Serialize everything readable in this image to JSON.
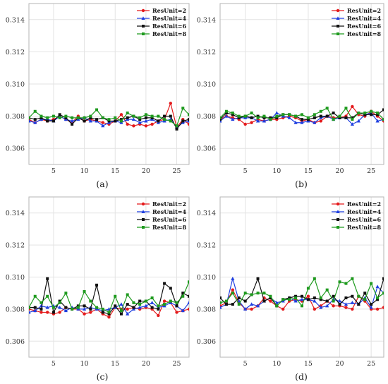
{
  "colors": {
    "ResUnit=2": "#e41a1c",
    "ResUnit=4": "#1f3fe0",
    "ResUnit=6": "#111111",
    "ResUnit=8": "#1e9a1e"
  },
  "chart_data": [
    {
      "type": "line",
      "caption": "(a)",
      "x": [
        1,
        2,
        3,
        4,
        5,
        6,
        7,
        8,
        9,
        10,
        11,
        12,
        13,
        14,
        15,
        16,
        17,
        18,
        19,
        20,
        21,
        22,
        23,
        24,
        25,
        26,
        27
      ],
      "xlim": [
        1,
        27
      ],
      "ylim": [
        0.305,
        0.315
      ],
      "xticks": [
        5,
        10,
        15,
        20,
        25
      ],
      "yticks": [
        0.306,
        0.308,
        0.31,
        0.312,
        0.314
      ],
      "yticklabels": [
        "0.306",
        "0.308",
        "0.310",
        "0.312",
        "0.314"
      ],
      "grid": true,
      "legend": "top-right",
      "series": [
        {
          "name": "ResUnit=2",
          "values": [
            0.3078,
            0.3076,
            0.3078,
            0.3077,
            0.3078,
            0.308,
            0.3078,
            0.3076,
            0.308,
            0.3077,
            0.3078,
            0.3077,
            0.3076,
            0.3075,
            0.3077,
            0.3081,
            0.3075,
            0.3074,
            0.3075,
            0.3074,
            0.3075,
            0.3077,
            0.3078,
            0.3088,
            0.3073,
            0.3078,
            0.3075
          ]
        },
        {
          "name": "ResUnit=4",
          "values": [
            0.3077,
            0.3076,
            0.3078,
            0.3078,
            0.3077,
            0.308,
            0.3078,
            0.3077,
            0.3078,
            0.3079,
            0.3077,
            0.3077,
            0.3074,
            0.3076,
            0.3077,
            0.3076,
            0.3078,
            0.3078,
            0.3076,
            0.3077,
            0.3078,
            0.3076,
            0.3077,
            0.3078,
            0.3073,
            0.3076,
            0.3077
          ]
        },
        {
          "name": "ResUnit=6",
          "values": [
            0.3079,
            0.3078,
            0.3079,
            0.3077,
            0.3077,
            0.3081,
            0.3079,
            0.3075,
            0.3079,
            0.3077,
            0.3079,
            0.3078,
            0.3079,
            0.3077,
            0.3077,
            0.3078,
            0.3079,
            0.308,
            0.3078,
            0.3079,
            0.3079,
            0.3077,
            0.308,
            0.308,
            0.3072,
            0.3077,
            0.3078
          ]
        },
        {
          "name": "ResUnit=8",
          "values": [
            0.3079,
            0.3083,
            0.308,
            0.3079,
            0.308,
            0.3079,
            0.308,
            0.3079,
            0.3079,
            0.3079,
            0.308,
            0.3084,
            0.3079,
            0.3078,
            0.3079,
            0.3077,
            0.3082,
            0.308,
            0.3079,
            0.3081,
            0.308,
            0.308,
            0.3078,
            0.3077,
            0.3074,
            0.3085,
            0.3081
          ]
        }
      ]
    },
    {
      "type": "line",
      "caption": "(b)",
      "x": [
        1,
        2,
        3,
        4,
        5,
        6,
        7,
        8,
        9,
        10,
        11,
        12,
        13,
        14,
        15,
        16,
        17,
        18,
        19,
        20,
        21,
        22,
        23,
        24,
        25,
        26,
        27
      ],
      "xlim": [
        1,
        27
      ],
      "ylim": [
        0.305,
        0.315
      ],
      "xticks": [
        5,
        10,
        15,
        20,
        25
      ],
      "yticks": [
        0.306,
        0.308,
        0.31,
        0.312,
        0.314
      ],
      "yticklabels": [
        "0.306",
        "0.308",
        "0.310",
        "0.312",
        "0.314"
      ],
      "grid": true,
      "legend": "top-right",
      "series": [
        {
          "name": "ResUnit=2",
          "values": [
            0.3078,
            0.308,
            0.3079,
            0.3078,
            0.3075,
            0.3076,
            0.3078,
            0.3077,
            0.3078,
            0.3078,
            0.3079,
            0.308,
            0.3079,
            0.3077,
            0.3078,
            0.3076,
            0.3077,
            0.308,
            0.3079,
            0.3079,
            0.308,
            0.3086,
            0.3081,
            0.308,
            0.3083,
            0.308,
            0.3077
          ]
        },
        {
          "name": "ResUnit=4",
          "values": [
            0.3077,
            0.308,
            0.3078,
            0.3079,
            0.3079,
            0.3079,
            0.3077,
            0.3077,
            0.3078,
            0.3082,
            0.308,
            0.3079,
            0.3076,
            0.3076,
            0.3077,
            0.3076,
            0.3079,
            0.308,
            0.3078,
            0.3079,
            0.3079,
            0.3075,
            0.3077,
            0.3081,
            0.3082,
            0.3077,
            0.3078
          ]
        },
        {
          "name": "ResUnit=6",
          "values": [
            0.3078,
            0.3082,
            0.3081,
            0.3079,
            0.308,
            0.3079,
            0.308,
            0.3079,
            0.3079,
            0.3079,
            0.3081,
            0.3081,
            0.308,
            0.3078,
            0.3078,
            0.3079,
            0.308,
            0.308,
            0.3082,
            0.3079,
            0.3079,
            0.3079,
            0.3082,
            0.3081,
            0.3081,
            0.3081,
            0.3084
          ]
        },
        {
          "name": "ResUnit=8",
          "values": [
            0.3079,
            0.3083,
            0.3082,
            0.308,
            0.308,
            0.3082,
            0.3079,
            0.308,
            0.3078,
            0.308,
            0.3081,
            0.3081,
            0.308,
            0.3081,
            0.3079,
            0.3081,
            0.3083,
            0.3085,
            0.3078,
            0.308,
            0.3085,
            0.3078,
            0.3082,
            0.3082,
            0.3083,
            0.3082,
            0.3078
          ]
        }
      ]
    },
    {
      "type": "line",
      "caption": "(c)",
      "x": [
        1,
        2,
        3,
        4,
        5,
        6,
        7,
        8,
        9,
        10,
        11,
        12,
        13,
        14,
        15,
        16,
        17,
        18,
        19,
        20,
        21,
        22,
        23,
        24,
        25,
        26,
        27
      ],
      "xlim": [
        1,
        27
      ],
      "ylim": [
        0.305,
        0.315
      ],
      "xticks": [
        5,
        10,
        15,
        20,
        25
      ],
      "yticks": [
        0.306,
        0.308,
        0.31,
        0.312,
        0.314
      ],
      "yticklabels": [
        "0.306",
        "0.308",
        "0.310",
        "0.312",
        "0.314"
      ],
      "grid": true,
      "legend": "top-right",
      "series": [
        {
          "name": "ResUnit=2",
          "values": [
            0.308,
            0.3079,
            0.3078,
            0.3078,
            0.3077,
            0.3078,
            0.3081,
            0.308,
            0.308,
            0.3077,
            0.3078,
            0.308,
            0.3077,
            0.3075,
            0.3081,
            0.308,
            0.308,
            0.3081,
            0.308,
            0.3081,
            0.308,
            0.3076,
            0.3085,
            0.3084,
            0.3078,
            0.3079,
            0.308
          ]
        },
        {
          "name": "ResUnit=4",
          "values": [
            0.3078,
            0.3079,
            0.3082,
            0.3081,
            0.3082,
            0.3081,
            0.3079,
            0.3081,
            0.308,
            0.308,
            0.3081,
            0.308,
            0.3079,
            0.308,
            0.3081,
            0.3083,
            0.3077,
            0.308,
            0.3081,
            0.3082,
            0.3084,
            0.3081,
            0.3082,
            0.3084,
            0.3082,
            0.3079,
            0.3084
          ]
        },
        {
          "name": "ResUnit=6",
          "values": [
            0.3081,
            0.3081,
            0.308,
            0.3099,
            0.3078,
            0.3085,
            0.3081,
            0.308,
            0.3082,
            0.3082,
            0.308,
            0.3095,
            0.3078,
            0.3077,
            0.3082,
            0.3077,
            0.3083,
            0.3081,
            0.3085,
            0.3085,
            0.3081,
            0.308,
            0.3096,
            0.3093,
            0.3082,
            0.309,
            0.3088
          ]
        },
        {
          "name": "ResUnit=8",
          "values": [
            0.3081,
            0.3088,
            0.3084,
            0.3088,
            0.3081,
            0.3084,
            0.309,
            0.308,
            0.3081,
            0.3091,
            0.3085,
            0.3081,
            0.308,
            0.3078,
            0.3088,
            0.3079,
            0.3089,
            0.3084,
            0.3083,
            0.3085,
            0.3087,
            0.3082,
            0.3083,
            0.3085,
            0.3084,
            0.3088,
            0.3097
          ]
        }
      ]
    },
    {
      "type": "line",
      "caption": "(d)",
      "x": [
        1,
        2,
        3,
        4,
        5,
        6,
        7,
        8,
        9,
        10,
        11,
        12,
        13,
        14,
        15,
        16,
        17,
        18,
        19,
        20,
        21,
        22,
        23,
        24,
        25,
        26,
        27
      ],
      "xlim": [
        1,
        27
      ],
      "ylim": [
        0.305,
        0.315
      ],
      "xticks": [
        5,
        10,
        15,
        20,
        25
      ],
      "yticks": [
        0.306,
        0.308,
        0.31,
        0.312,
        0.314
      ],
      "yticklabels": [
        "0.306",
        "0.308",
        "0.310",
        "0.312",
        "0.314"
      ],
      "grid": true,
      "legend": "top-right",
      "series": [
        {
          "name": "ResUnit=2",
          "values": [
            0.3082,
            0.3084,
            0.3092,
            0.3084,
            0.308,
            0.308,
            0.3082,
            0.3087,
            0.3085,
            0.3082,
            0.308,
            0.3085,
            0.3086,
            0.3085,
            0.3088,
            0.308,
            0.3082,
            0.3085,
            0.3082,
            0.3082,
            0.3081,
            0.308,
            0.3088,
            0.3085,
            0.308,
            0.308,
            0.3081
          ]
        },
        {
          "name": "ResUnit=4",
          "values": [
            0.3081,
            0.3083,
            0.3099,
            0.3085,
            0.308,
            0.3083,
            0.3082,
            0.3085,
            0.3087,
            0.3084,
            0.3085,
            0.3087,
            0.3085,
            0.3086,
            0.3086,
            0.3085,
            0.3081,
            0.3082,
            0.3086,
            0.3085,
            0.3083,
            0.3084,
            0.3083,
            0.3087,
            0.3081,
            0.3094,
            0.309
          ]
        },
        {
          "name": "ResUnit=6",
          "values": [
            0.3087,
            0.3083,
            0.3083,
            0.3087,
            0.3085,
            0.3089,
            0.3099,
            0.3085,
            0.3087,
            0.3082,
            0.3086,
            0.3087,
            0.3088,
            0.3088,
            0.3086,
            0.3087,
            0.3086,
            0.3085,
            0.3088,
            0.3083,
            0.3087,
            0.3088,
            0.3083,
            0.309,
            0.3083,
            0.3086,
            0.3099
          ]
        },
        {
          "name": "ResUnit=8",
          "values": [
            0.3084,
            0.3085,
            0.309,
            0.3083,
            0.309,
            0.3089,
            0.309,
            0.309,
            0.3088,
            0.3082,
            0.3086,
            0.3086,
            0.3087,
            0.3082,
            0.3093,
            0.3099,
            0.3087,
            0.3092,
            0.3085,
            0.3097,
            0.3096,
            0.3099,
            0.3088,
            0.3086,
            0.3096,
            0.3087,
            0.309
          ]
        }
      ]
    }
  ]
}
